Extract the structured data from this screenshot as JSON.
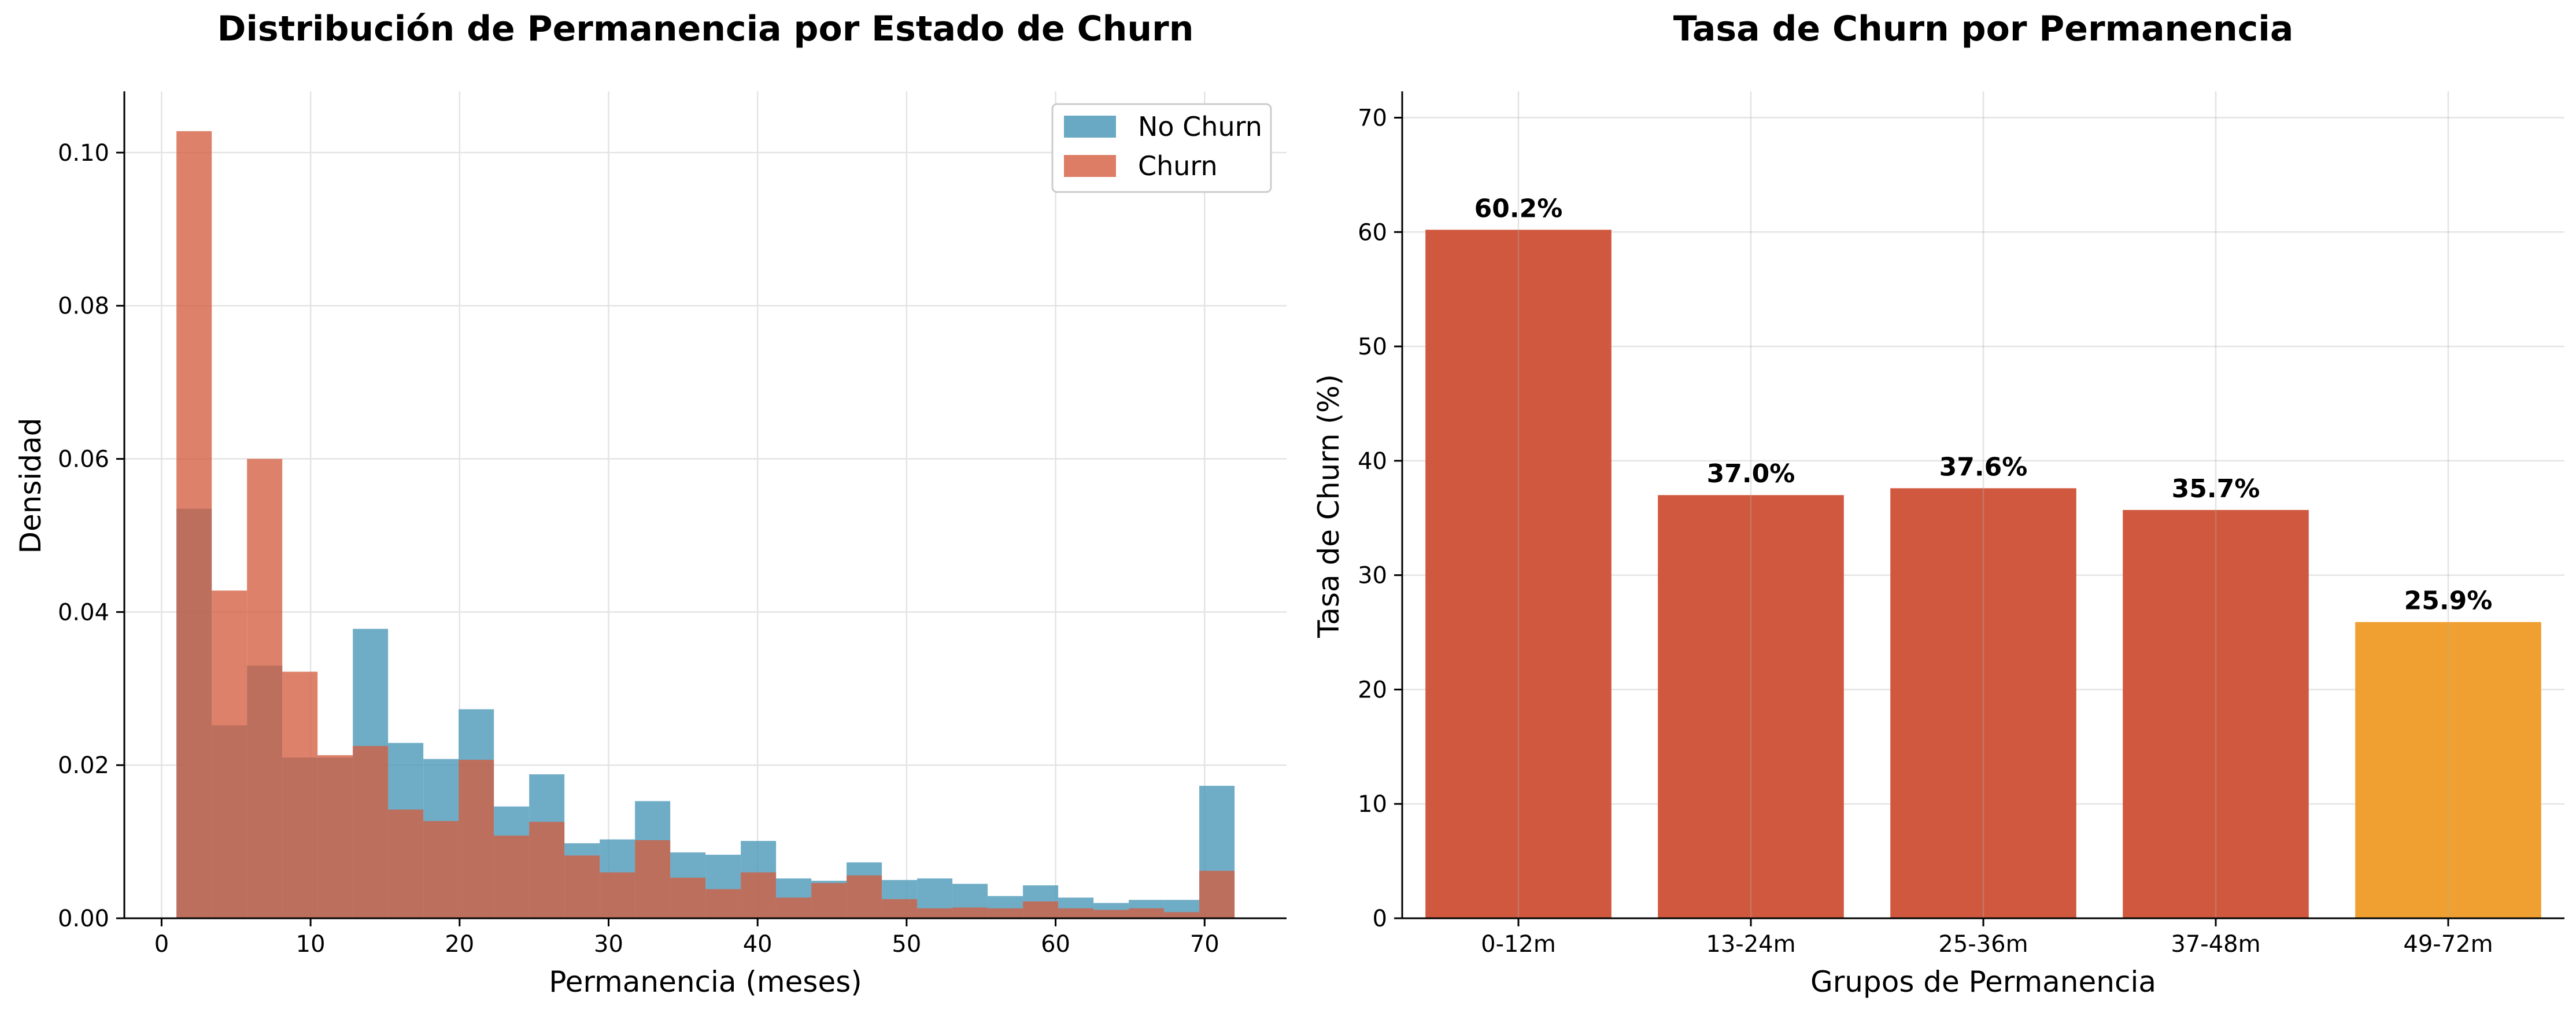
{
  "chart_data": [
    {
      "type": "histogram",
      "title": "Distribución de Permanencia por Estado de Churn",
      "xlabel": "Permanencia (meses)",
      "ylabel": "Densidad",
      "xlim": [
        -2.5,
        75.5
      ],
      "ylim": [
        0,
        0.108
      ],
      "x_ticks": [
        0,
        10,
        20,
        30,
        40,
        50,
        60,
        70
      ],
      "y_ticks": [
        0.0,
        0.02,
        0.04,
        0.06,
        0.08,
        0.1
      ],
      "y_tick_decimals": 2,
      "grid": true,
      "legend": "top-right",
      "bin_start": 1,
      "bin_width": 2.367,
      "series": [
        {
          "name": "No Churn",
          "color": "#4f9ab9",
          "values": [
            0.0535,
            0.0252,
            0.033,
            0.021,
            0.021,
            0.0378,
            0.0229,
            0.0208,
            0.0273,
            0.0146,
            0.0188,
            0.0098,
            0.0103,
            0.0153,
            0.0086,
            0.0083,
            0.0101,
            0.0052,
            0.0049,
            0.0073,
            0.005,
            0.0052,
            0.0045,
            0.0029,
            0.0043,
            0.0027,
            0.002,
            0.0024,
            0.0024,
            0.0173
          ]
        },
        {
          "name": "Churn",
          "color": "#d45d40",
          "values": [
            0.1028,
            0.0428,
            0.06,
            0.0322,
            0.0213,
            0.0225,
            0.0142,
            0.0127,
            0.0207,
            0.0108,
            0.0126,
            0.0082,
            0.006,
            0.0102,
            0.0053,
            0.0038,
            0.006,
            0.0027,
            0.0046,
            0.0056,
            0.0025,
            0.0013,
            0.0014,
            0.0013,
            0.0022,
            0.0013,
            0.0011,
            0.0013,
            0.0008,
            0.0062
          ]
        }
      ]
    },
    {
      "type": "bar",
      "title": "Tasa de Churn por Permanencia",
      "xlabel": "Grupos de Permanencia",
      "ylabel": "Tasa de Churn (%)",
      "ylim": [
        0,
        72.3
      ],
      "y_ticks": [
        0,
        10,
        20,
        30,
        40,
        50,
        60,
        70
      ],
      "grid": true,
      "categories": [
        "0-12m",
        "13-24m",
        "25-36m",
        "37-48m",
        "49-72m"
      ],
      "values": [
        60.2,
        37.0,
        37.6,
        35.7,
        25.9
      ],
      "data_labels": [
        "60.2%",
        "37.0%",
        "37.6%",
        "35.7%",
        "25.9%"
      ],
      "colors": [
        "#d0583f",
        "#d0583f",
        "#d0583f",
        "#d0583f",
        "#f0a030"
      ]
    }
  ]
}
